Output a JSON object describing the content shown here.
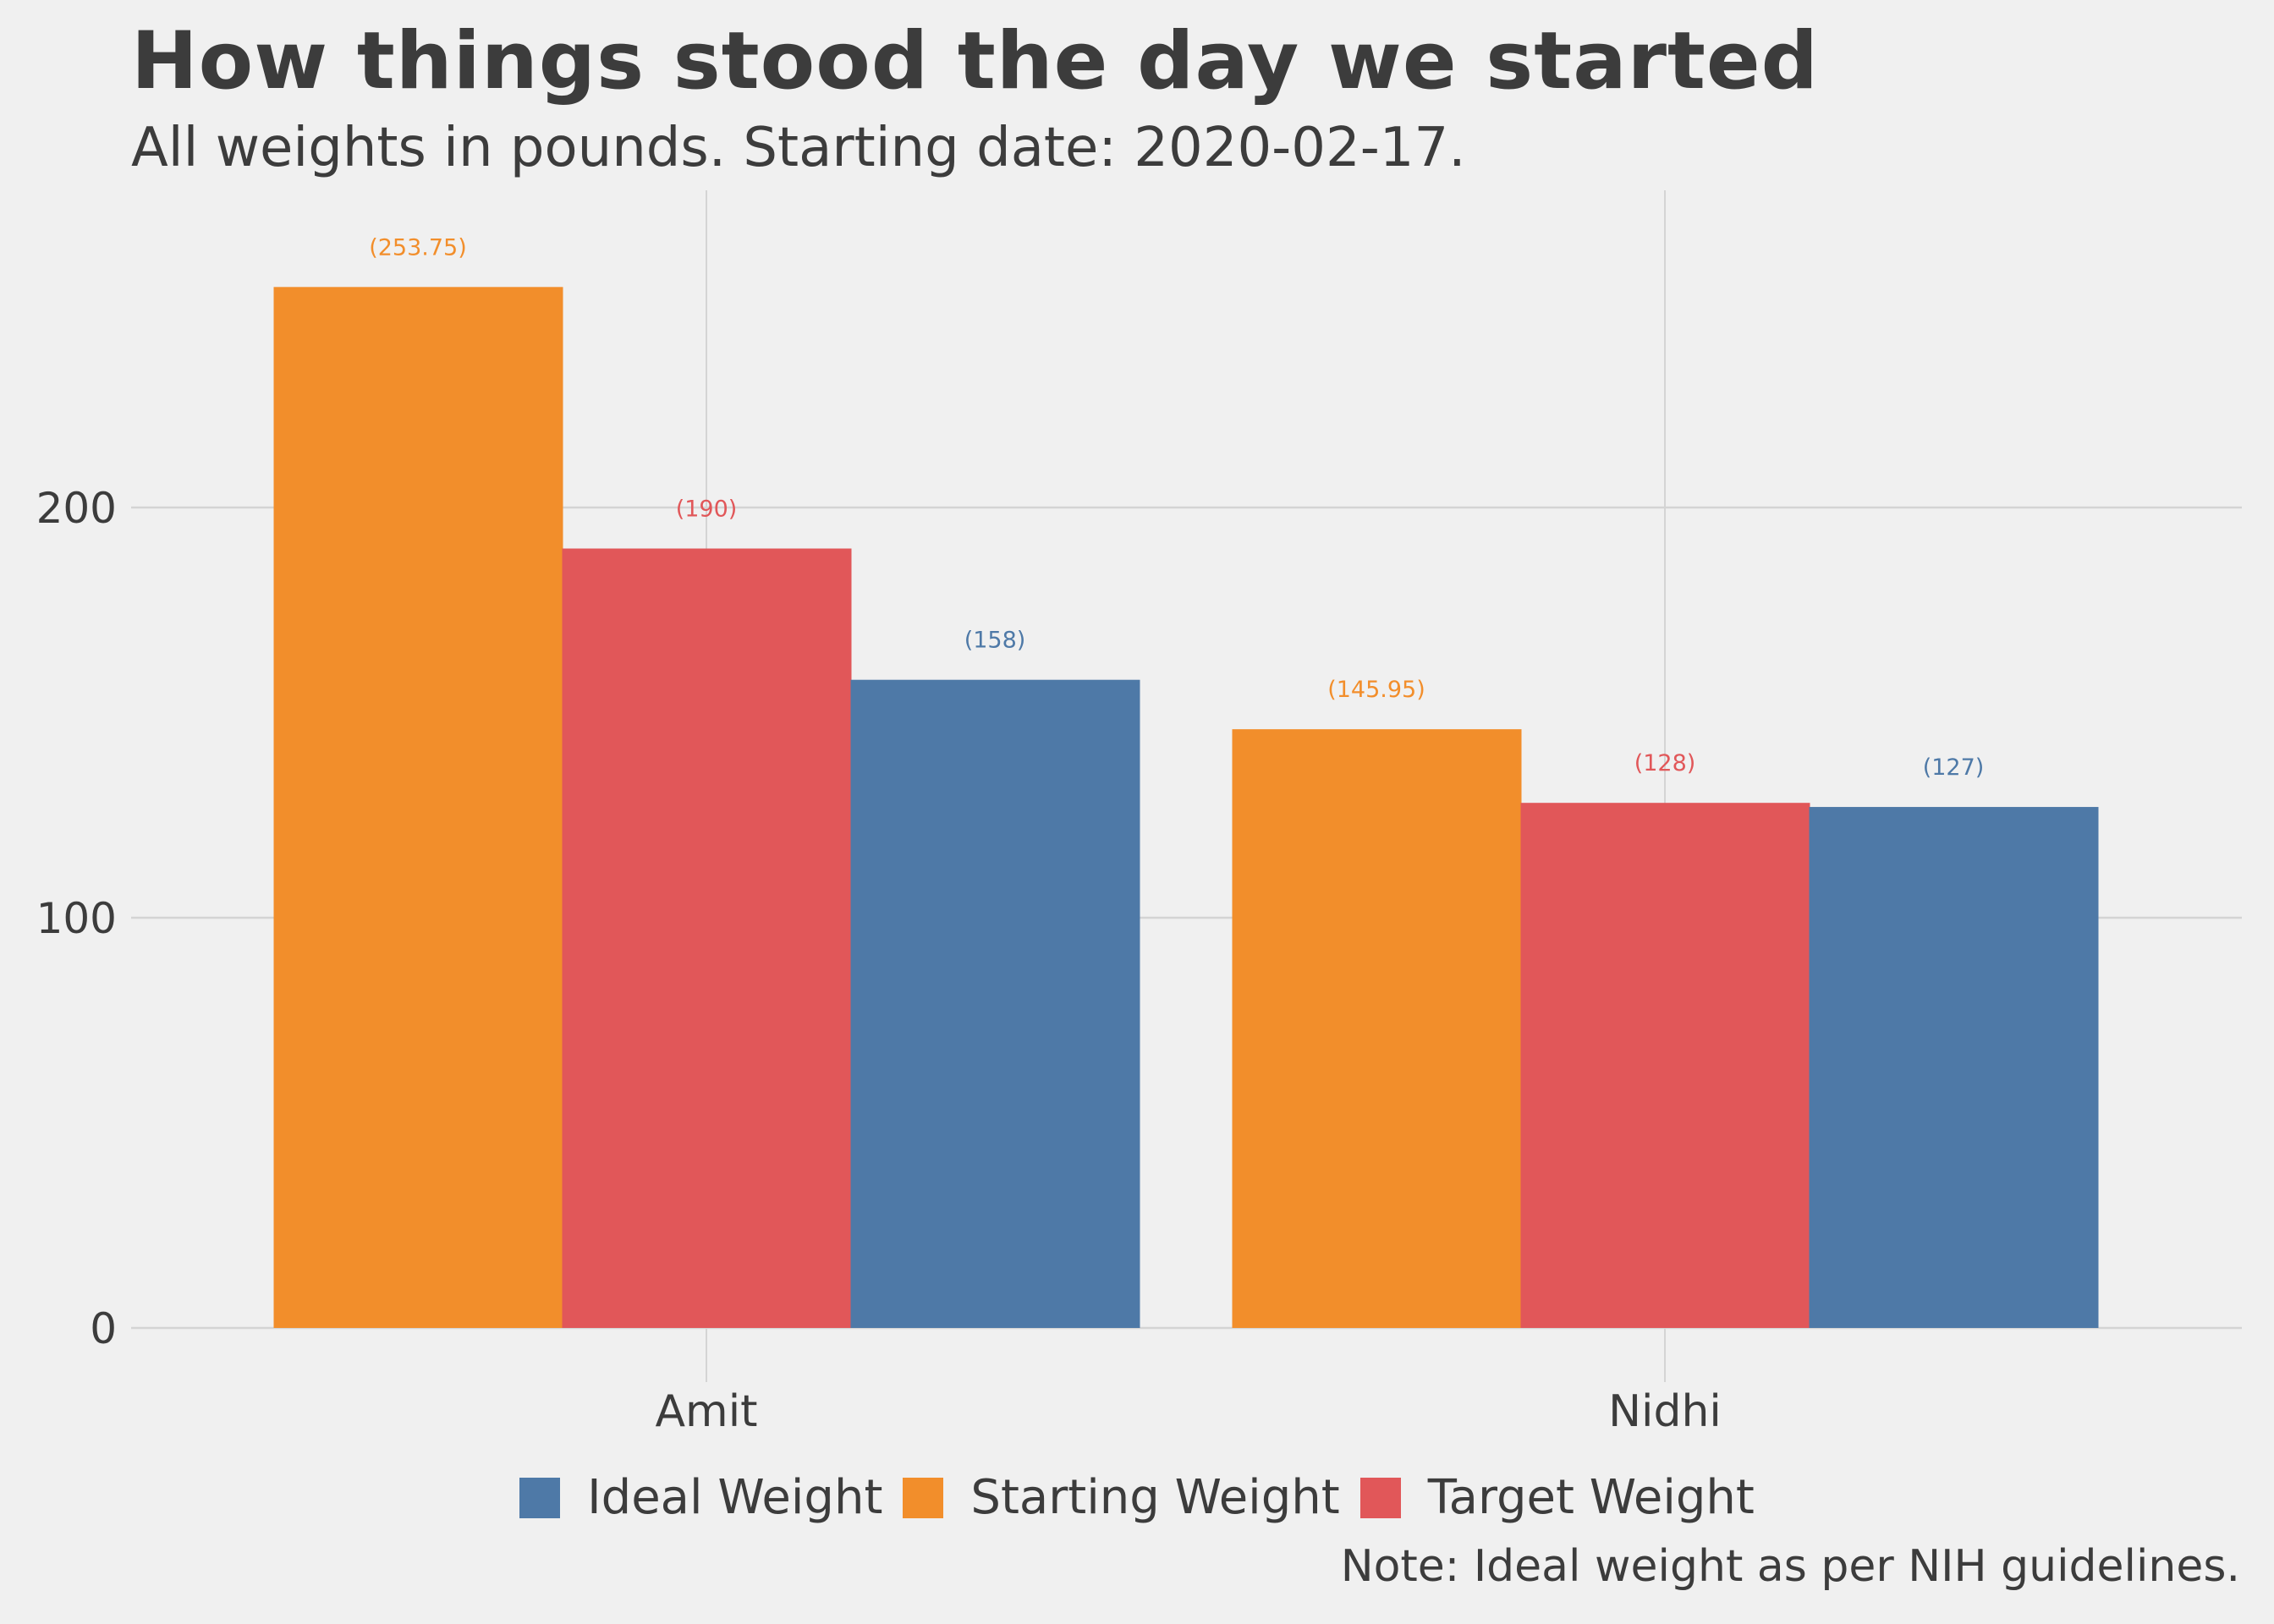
{
  "chart_data": {
    "type": "bar",
    "title": "How things stood the day we started",
    "subtitle": "All weights in pounds. Starting date: 2020-02-17.",
    "note": "Note: Ideal weight as per NIH guidelines.",
    "xlabel": "",
    "ylabel": "",
    "categories": [
      "Amit",
      "Nidhi"
    ],
    "series": [
      {
        "name": "Starting Weight",
        "color": "#f28e2b",
        "values": [
          253.75,
          145.95
        ],
        "labels": [
          "(253.75)",
          "(145.95)"
        ]
      },
      {
        "name": "Target Weight",
        "color": "#e15759",
        "values": [
          190,
          128
        ],
        "labels": [
          "(190)",
          "(128)"
        ]
      },
      {
        "name": "Ideal Weight",
        "color": "#4e79a7",
        "values": [
          158,
          127
        ],
        "labels": [
          "(158)",
          "(127)"
        ]
      }
    ],
    "legend_order": [
      "Ideal Weight",
      "Starting Weight",
      "Target Weight"
    ],
    "legend_position": "bottom",
    "yticks": [
      0,
      100,
      200
    ],
    "ylim": [
      0,
      270
    ],
    "grid": true
  }
}
